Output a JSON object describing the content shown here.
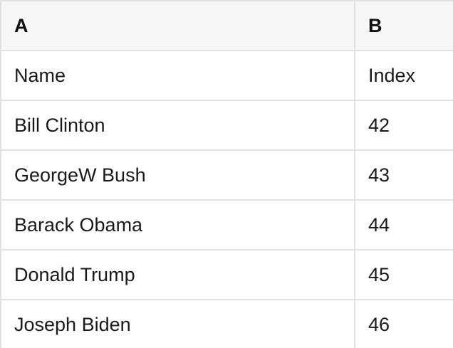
{
  "table": {
    "column_headers": [
      {
        "label": "A"
      },
      {
        "label": "B"
      }
    ],
    "rows": [
      {
        "a": "Name",
        "b": "Index"
      },
      {
        "a": "Bill Clinton",
        "b": "42"
      },
      {
        "a": "GeorgeW Bush",
        "b": "43"
      },
      {
        "a": "Barack Obama",
        "b": "44"
      },
      {
        "a": "Donald Trump",
        "b": "45"
      },
      {
        "a": "Joseph Biden",
        "b": "46"
      }
    ]
  },
  "colors": {
    "header_background": "#f7f7f7",
    "row_background": "#ffffff",
    "border": "#e1e1e1",
    "text": "#1a1a1a"
  }
}
